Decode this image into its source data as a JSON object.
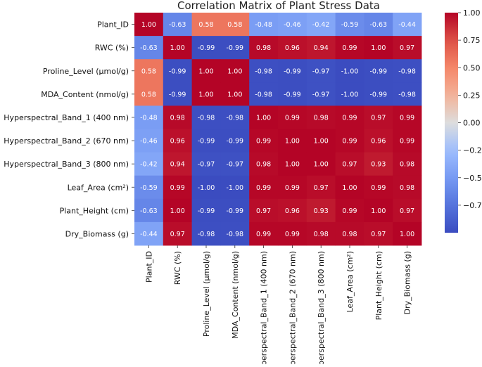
{
  "chart_data": {
    "type": "heatmap",
    "title": "Correlation Matrix of Plant Stress Data",
    "variables": [
      "Plant_ID",
      "RWC (%)",
      "Proline_Level (µmol/g)",
      "MDA_Content (nmol/g)",
      "Hyperspectral_Band_1 (400 nm)",
      "Hyperspectral_Band_2 (670 nm)",
      "Hyperspectral_Band_3 (800 nm)",
      "Leaf_Area (cm²)",
      "Plant_Height (cm)",
      "Dry_Biomass (g)"
    ],
    "matrix": [
      [
        1.0,
        -0.63,
        0.58,
        0.58,
        -0.48,
        -0.46,
        -0.42,
        -0.59,
        -0.63,
        -0.44
      ],
      [
        -0.63,
        1.0,
        -0.99,
        -0.99,
        0.98,
        0.96,
        0.94,
        0.99,
        1.0,
        0.97
      ],
      [
        0.58,
        -0.99,
        1.0,
        1.0,
        -0.98,
        -0.99,
        -0.97,
        -1.0,
        -0.99,
        -0.98
      ],
      [
        0.58,
        -0.99,
        1.0,
        1.0,
        -0.98,
        -0.99,
        -0.97,
        -1.0,
        -0.99,
        -0.98
      ],
      [
        -0.48,
        0.98,
        -0.98,
        -0.98,
        1.0,
        0.99,
        0.98,
        0.99,
        0.97,
        0.99
      ],
      [
        -0.46,
        0.96,
        -0.99,
        -0.99,
        0.99,
        1.0,
        1.0,
        0.99,
        0.96,
        0.99
      ],
      [
        -0.42,
        0.94,
        -0.97,
        -0.97,
        0.98,
        1.0,
        1.0,
        0.97,
        0.93,
        0.98
      ],
      [
        -0.59,
        0.99,
        -1.0,
        -1.0,
        0.99,
        0.99,
        0.97,
        1.0,
        0.99,
        0.98
      ],
      [
        -0.63,
        1.0,
        -0.99,
        -0.99,
        0.97,
        0.96,
        0.93,
        0.99,
        1.0,
        0.97
      ],
      [
        -0.44,
        0.97,
        -0.98,
        -0.98,
        0.99,
        0.99,
        0.98,
        0.98,
        0.97,
        1.0
      ]
    ],
    "colormap": "coolwarm",
    "colorbar": {
      "vmin": -1.0,
      "vmax": 1.0,
      "ticks": [
        "1.00",
        "0.75",
        "0.50",
        "0.25",
        "0.00",
        "−0.25",
        "−0.50",
        "−0.75"
      ],
      "tick_values": [
        1.0,
        0.75,
        0.5,
        0.25,
        0.0,
        -0.25,
        -0.5,
        -0.75
      ]
    },
    "annotations": "values shown in each cell with 2 decimals",
    "grid": false
  }
}
